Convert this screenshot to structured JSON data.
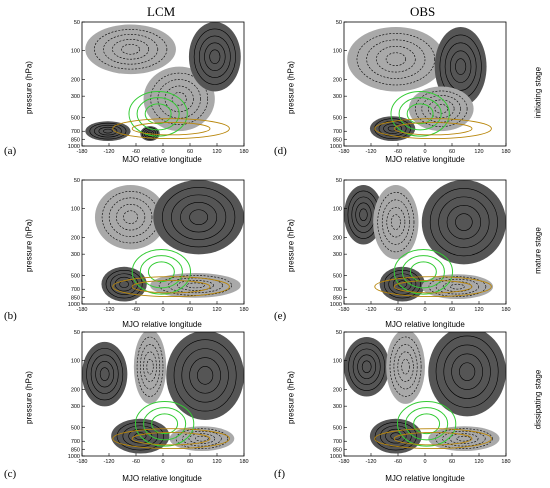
{
  "column_titles": [
    "LCM",
    "OBS"
  ],
  "panel_labels": [
    "(a)",
    "(b)",
    "(c)",
    "(d)",
    "(e)",
    "(f)"
  ],
  "stage_labels": [
    "initiating stage",
    "mature stage",
    "dissipating stage"
  ],
  "ylabel": "pressure (hPa)",
  "xlabel": "MJO relative longitude",
  "colors": {
    "positive_fill": "#555555",
    "negative_fill": "#a9a9a9",
    "green_contour": "#33cc33",
    "brown_contour": "#b8860b"
  },
  "chart_data": [
    {
      "type": "contour",
      "panel": "(a)",
      "column": "LCM",
      "stage": "initiating stage",
      "x_ticks": [
        -180,
        -120,
        -60,
        0,
        60,
        120,
        180
      ],
      "y_ticks": [
        50,
        100,
        200,
        300,
        500,
        700,
        850,
        1000
      ],
      "xlim": [
        -180,
        180
      ],
      "ylim": [
        1000,
        50
      ],
      "y_scale": "log"
    },
    {
      "type": "contour",
      "panel": "(b)",
      "column": "LCM",
      "stage": "mature stage",
      "x_ticks": [
        -180,
        -120,
        -60,
        0,
        60,
        120,
        180
      ],
      "y_ticks": [
        50,
        100,
        200,
        300,
        500,
        700,
        850,
        1000
      ],
      "xlim": [
        -180,
        180
      ],
      "ylim": [
        1000,
        50
      ],
      "y_scale": "log"
    },
    {
      "type": "contour",
      "panel": "(c)",
      "column": "LCM",
      "stage": "dissipating stage",
      "x_ticks": [
        -180,
        -120,
        -60,
        0,
        60,
        120,
        180
      ],
      "y_ticks": [
        50,
        100,
        200,
        300,
        500,
        700,
        850,
        1000
      ],
      "xlim": [
        -180,
        180
      ],
      "ylim": [
        1000,
        50
      ],
      "y_scale": "log"
    },
    {
      "type": "contour",
      "panel": "(d)",
      "column": "OBS",
      "stage": "initiating stage",
      "x_ticks": [
        -180,
        -120,
        -60,
        0,
        60,
        120,
        180
      ],
      "y_ticks": [
        50,
        100,
        200,
        300,
        500,
        700,
        850,
        1000
      ],
      "xlim": [
        -180,
        180
      ],
      "ylim": [
        1000,
        50
      ],
      "y_scale": "log"
    },
    {
      "type": "contour",
      "panel": "(e)",
      "column": "OBS",
      "stage": "mature stage",
      "x_ticks": [
        -180,
        -120,
        -60,
        0,
        60,
        120,
        180
      ],
      "y_ticks": [
        50,
        100,
        200,
        300,
        500,
        700,
        850,
        1000
      ],
      "xlim": [
        -180,
        180
      ],
      "ylim": [
        1000,
        50
      ],
      "y_scale": "log"
    },
    {
      "type": "contour",
      "panel": "(f)",
      "column": "OBS",
      "stage": "dissipating stage",
      "x_ticks": [
        -180,
        -120,
        -60,
        0,
        60,
        120,
        180
      ],
      "y_ticks": [
        50,
        100,
        200,
        300,
        500,
        700,
        850,
        1000
      ],
      "xlim": [
        -180,
        180
      ],
      "ylim": [
        1000,
        50
      ],
      "y_scale": "log"
    }
  ]
}
